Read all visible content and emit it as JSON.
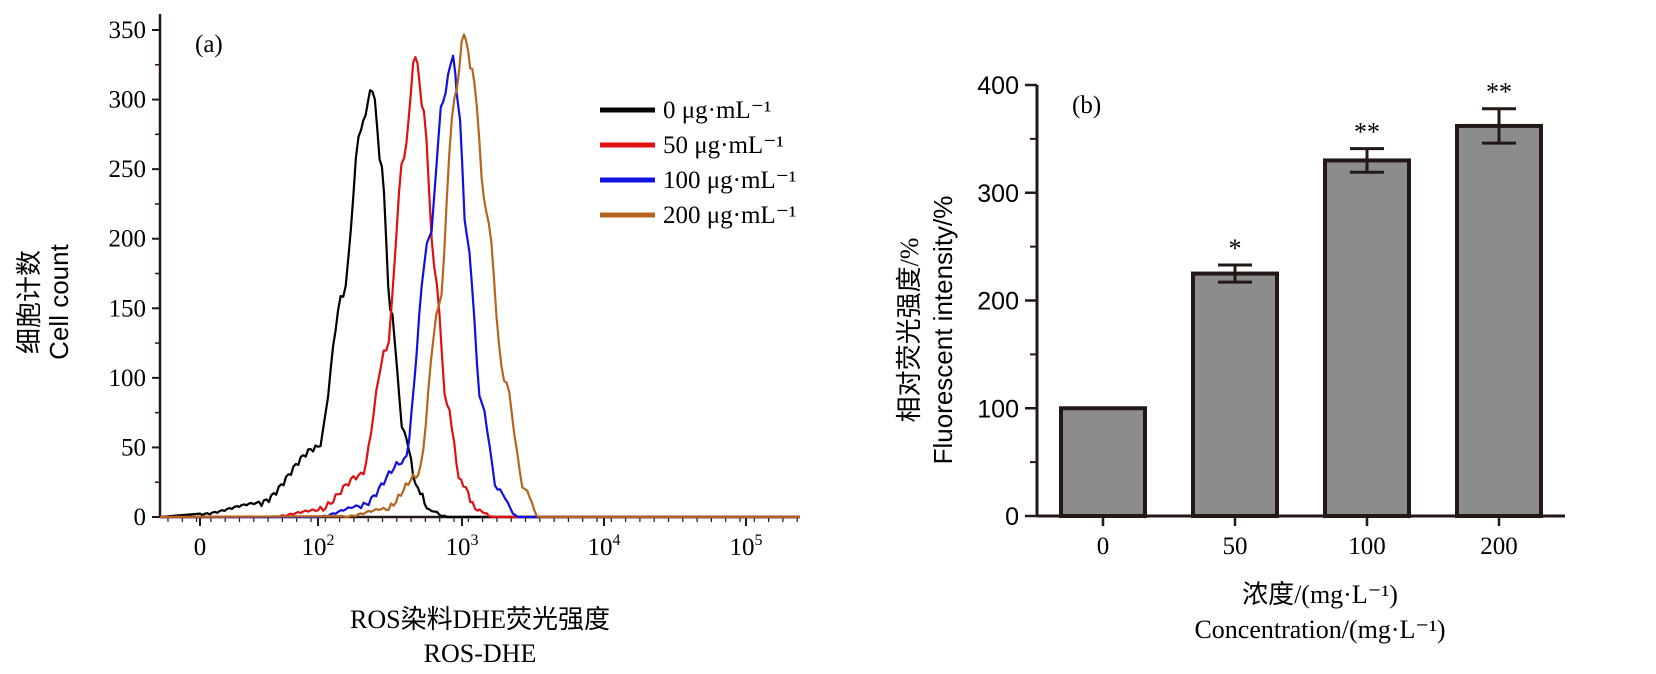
{
  "chart_data": [
    {
      "panel_label": "(a)",
      "type": "line",
      "ylabel_cn": "细胞计数",
      "ylabel_en": "Cell count",
      "xlabel_cn": "ROS染料DHE荧光强度",
      "xlabel_en": "ROS-DHE",
      "ylim": [
        0,
        350
      ],
      "y_ticks": [
        "0",
        "50",
        "100",
        "150",
        "200",
        "250",
        "300",
        "350"
      ],
      "x_ticks": [
        {
          "base": "0",
          "exp": ""
        },
        {
          "base": "10",
          "exp": "2"
        },
        {
          "base": "10",
          "exp": "3"
        },
        {
          "base": "10",
          "exp": "4"
        },
        {
          "base": "10",
          "exp": "5"
        }
      ],
      "x_scale": "log (biexponential, with 0)",
      "legend_position": "top-right",
      "series": [
        {
          "name": "0 μg·mL⁻¹",
          "color": "#000000",
          "x": [
            0,
            50,
            100,
            150,
            200,
            240,
            280,
            320,
            400,
            500,
            600,
            800
          ],
          "y": [
            2,
            10,
            50,
            160,
            280,
            308,
            250,
            150,
            60,
            20,
            5,
            0
          ]
        },
        {
          "name": "50 μg·mL⁻¹",
          "color": "#e01010",
          "x": [
            60,
            100,
            200,
            300,
            400,
            480,
            550,
            650,
            800,
            1000,
            1300,
            1700
          ],
          "y": [
            0,
            5,
            30,
            120,
            260,
            332,
            290,
            180,
            80,
            25,
            5,
            0
          ]
        },
        {
          "name": "100 μg·mL⁻¹",
          "color": "#1010e0",
          "x": [
            100,
            200,
            400,
            600,
            750,
            880,
            950,
            1100,
            1400,
            1800,
            2500
          ],
          "y": [
            0,
            8,
            40,
            200,
            300,
            332,
            300,
            200,
            80,
            20,
            0
          ]
        },
        {
          "name": "200 μg·mL⁻¹",
          "color": "#b5651d",
          "x": [
            150,
            300,
            500,
            700,
            900,
            1050,
            1200,
            1500,
            2000,
            2800,
            3500
          ],
          "y": [
            0,
            6,
            30,
            150,
            300,
            347,
            320,
            220,
            100,
            20,
            0
          ]
        }
      ]
    },
    {
      "panel_label": "(b)",
      "type": "bar",
      "ylabel_cn": "相对荧光强度/%",
      "ylabel_en": "Fluorescent intensity/%",
      "xlabel_cn": "浓度/(mg·L⁻¹)",
      "xlabel_en": "Concentration/(mg·L⁻¹)",
      "categories": [
        "0",
        "50",
        "100",
        "200"
      ],
      "values": [
        100,
        225,
        330,
        362
      ],
      "errors": [
        0,
        8,
        11,
        16
      ],
      "significance": [
        "",
        "*",
        "**",
        "**"
      ],
      "ylim": [
        0,
        400
      ],
      "y_ticks": [
        "0",
        "100",
        "200",
        "300",
        "400"
      ],
      "bar_color": "#8c8c8c"
    }
  ]
}
